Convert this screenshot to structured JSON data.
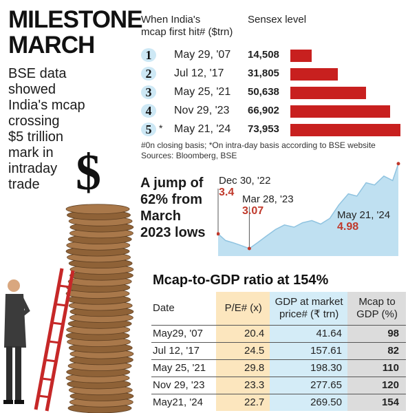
{
  "headline": [
    "MILESTONE",
    "MARCH"
  ],
  "subhead": [
    "BSE data",
    "showed",
    "India's mcap",
    "crossing",
    "$5 trillion",
    "mark in",
    "intraday",
    "trade"
  ],
  "milestones": {
    "col_date_header": [
      "When India's",
      "mcap first hit# ($trn)"
    ],
    "col_sensex_header": "Sensex level",
    "rows": [
      {
        "num": "1",
        "star": "",
        "date": "May 29, '07",
        "sensex": "14,508"
      },
      {
        "num": "2",
        "star": "",
        "date": "Jul 12, '17",
        "sensex": "31,805"
      },
      {
        "num": "3",
        "star": "",
        "date": "May 25, '21",
        "sensex": "50,638"
      },
      {
        "num": "4",
        "star": "",
        "date": "Nov 29, '23",
        "sensex": "66,902"
      },
      {
        "num": "5",
        "star": "*",
        "date": "May 21, '24",
        "sensex": "73,953"
      }
    ],
    "footnote": [
      "#0n closing basis; *On intra-day basis according to BSE website",
      "Sources: Bloomberg, BSE"
    ]
  },
  "jump_text": [
    "A jump of",
    "62% from",
    "March",
    "2023 lows"
  ],
  "annotations": [
    {
      "date": "Dec 30, '22",
      "value": "3.4"
    },
    {
      "date": "Mar 28, '23",
      "value": "3.07"
    },
    {
      "date": "May 21, '24",
      "value": "4.98"
    }
  ],
  "gdp_table": {
    "title": "Mcap-to-GDP ratio at 154%",
    "headers": {
      "date": "Date",
      "pe": "P/E# (x)",
      "gdp": [
        "GDP at market",
        "price# (₹ trn)"
      ],
      "ratio": [
        "Mcap to",
        "GDP (%)"
      ]
    },
    "rows": [
      {
        "date": "May29, '07",
        "pe": "20.4",
        "gdp": "41.64",
        "ratio": "98"
      },
      {
        "date": "Jul 12, '17",
        "pe": "24.5",
        "gdp": "157.61",
        "ratio": "82"
      },
      {
        "date": "May 25, '21",
        "pe": "29.8",
        "gdp": "198.30",
        "ratio": "110"
      },
      {
        "date": "Nov 29, '23",
        "pe": "23.3",
        "gdp": "277.65",
        "ratio": "120"
      },
      {
        "date": "May21, '24",
        "pe": "22.7",
        "gdp": "269.50",
        "ratio": "154"
      }
    ]
  },
  "chart_data": [
    {
      "type": "bar",
      "title": "",
      "xlabel": "",
      "ylabel": "Sensex level",
      "categories": [
        "May 29, '07",
        "Jul 12, '17",
        "May 25, '21",
        "Nov 29, '23",
        "May 21, '24"
      ],
      "values": [
        14508,
        31805,
        50638,
        66902,
        73953
      ],
      "ylim": [
        0,
        73953
      ],
      "orientation": "horizontal",
      "colors": {
        "bar": "#c8201f"
      }
    },
    {
      "type": "area",
      "title": "",
      "xlabel": "",
      "ylabel": "",
      "x": [
        "2022-12-30",
        "2023-01-20",
        "2023-02-10",
        "2023-03-01",
        "2023-03-28",
        "2023-04-20",
        "2023-05-15",
        "2023-06-10",
        "2023-07-05",
        "2023-08-01",
        "2023-08-25",
        "2023-09-20",
        "2023-10-15",
        "2023-11-10",
        "2023-12-05",
        "2024-01-01",
        "2024-01-25",
        "2024-02-20",
        "2024-03-15",
        "2024-04-10",
        "2024-05-05",
        "2024-05-21"
      ],
      "values": [
        3.4,
        3.25,
        3.2,
        3.15,
        3.07,
        3.2,
        3.35,
        3.5,
        3.6,
        3.55,
        3.65,
        3.7,
        3.62,
        3.75,
        4.05,
        4.3,
        4.25,
        4.55,
        4.5,
        4.7,
        4.6,
        4.98
      ],
      "ylim": [
        2.9,
        5.1
      ],
      "colors": {
        "fill": "#bfe0f1",
        "line": "#8fc3e0",
        "markers": "#c0392b"
      }
    }
  ]
}
